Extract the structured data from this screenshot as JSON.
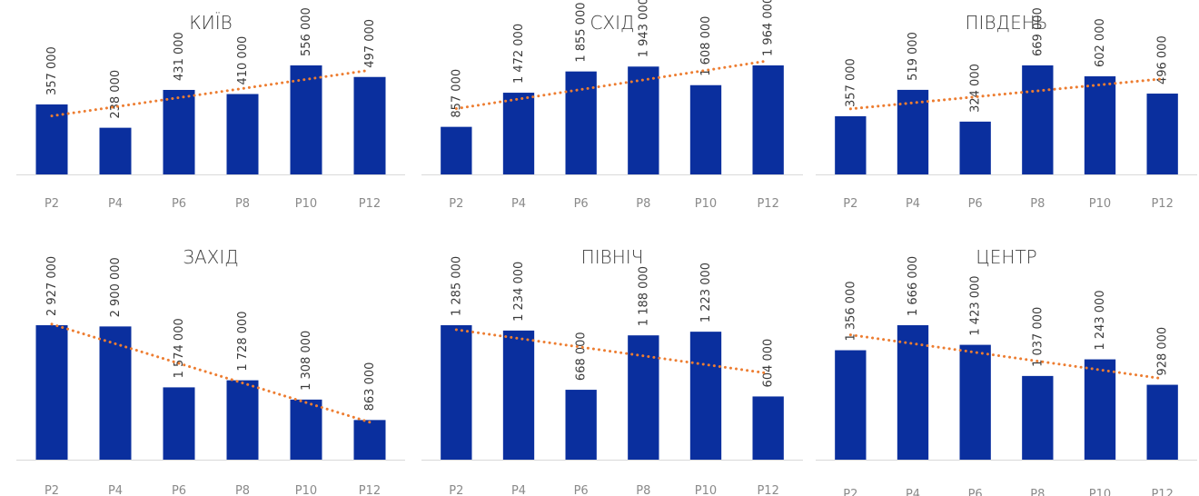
{
  "chart_data": [
    {
      "type": "bar",
      "title": "КИЇВ",
      "categories": [
        "P2",
        "P4",
        "P6",
        "P8",
        "P10",
        "P12"
      ],
      "values": [
        357000,
        238000,
        431000,
        410000,
        556000,
        497000
      ],
      "value_labels": [
        "357 000",
        "238 000",
        "431 000",
        "410 000",
        "556 000",
        "497 000"
      ],
      "trendline": "linear",
      "bar_color": "#0a2f9e",
      "trend_color": "#ed7d31"
    },
    {
      "type": "bar",
      "title": "СХІД",
      "categories": [
        "P2",
        "P4",
        "P6",
        "P8",
        "P10",
        "P12"
      ],
      "values": [
        857000,
        1472000,
        1855000,
        1943000,
        1608000,
        1964000
      ],
      "value_labels": [
        "857 000",
        "1 472 000",
        "1 855 000",
        "1 943 000",
        "1 608 000",
        "1 964 000"
      ],
      "trendline": "linear",
      "bar_color": "#0a2f9e",
      "trend_color": "#ed7d31"
    },
    {
      "type": "bar",
      "title": "ПІВДЕНЬ",
      "categories": [
        "P2",
        "P4",
        "P6",
        "P8",
        "P10",
        "P12"
      ],
      "values": [
        357000,
        519000,
        324000,
        669000,
        602000,
        496000
      ],
      "value_labels": [
        "357 000",
        "519 000",
        "324 000",
        "669 000",
        "602 000",
        "496 000"
      ],
      "trendline": "linear",
      "bar_color": "#0a2f9e",
      "trend_color": "#ed7d31"
    },
    {
      "type": "bar",
      "title": "ЗАХІД",
      "categories": [
        "P2",
        "P4",
        "P6",
        "P8",
        "P10",
        "P12"
      ],
      "values": [
        2927000,
        2900000,
        1574000,
        1728000,
        1308000,
        863000
      ],
      "value_labels": [
        "2 927 000",
        "2 900 000",
        "1 574 000",
        "1 728 000",
        "1 308 000",
        "863 000"
      ],
      "trendline": "linear",
      "bar_color": "#0a2f9e",
      "trend_color": "#ed7d31"
    },
    {
      "type": "bar",
      "title": "ПІВНІЧ",
      "categories": [
        "P2",
        "P4",
        "P6",
        "P8",
        "P10",
        "P12"
      ],
      "values": [
        1285000,
        1234000,
        668000,
        1188000,
        1223000,
        604000
      ],
      "value_labels": [
        "1 285 000",
        "1 234 000",
        "668 000",
        "1 188 000",
        "1 223 000",
        "604 000"
      ],
      "trendline": "linear",
      "bar_color": "#0a2f9e",
      "trend_color": "#ed7d31"
    },
    {
      "type": "bar",
      "title": "ЦЕНТР",
      "categories": [
        "P2",
        "P4",
        "P6",
        "P8",
        "P10",
        "P12"
      ],
      "values": [
        1356000,
        1666000,
        1423000,
        1037000,
        1243000,
        928000
      ],
      "value_labels": [
        "1 356 000",
        "1 666 000",
        "1 423 000",
        "1 037 000",
        "1 243 000",
        "928 000"
      ],
      "trendline": "linear",
      "bar_color": "#0a2f9e",
      "trend_color": "#ed7d31"
    }
  ]
}
